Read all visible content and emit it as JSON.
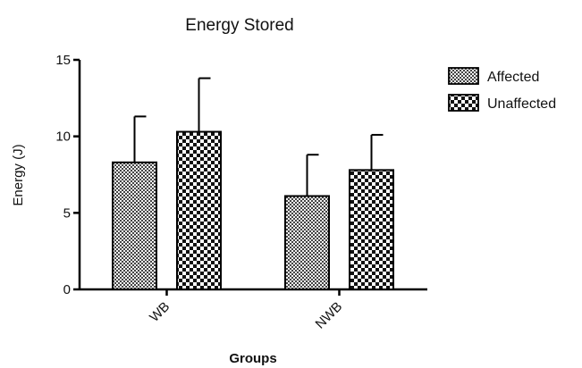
{
  "chart_data": {
    "type": "bar",
    "title": "Energy Stored",
    "xlabel": "Groups",
    "ylabel": "Energy (J)",
    "ylim": [
      0,
      15
    ],
    "yticks": [
      0,
      5,
      10,
      15
    ],
    "categories": [
      "WB",
      "NWB"
    ],
    "series": [
      {
        "name": "Affected",
        "values": [
          8.3,
          6.1
        ],
        "errors": [
          3.0,
          2.7
        ],
        "pattern": "fine-check"
      },
      {
        "name": "Unaffected",
        "values": [
          10.3,
          7.8
        ],
        "errors": [
          3.5,
          2.3
        ],
        "pattern": "coarse-check"
      }
    ],
    "legend_position": "top-right",
    "grid": false,
    "error_bars": "upper only"
  }
}
